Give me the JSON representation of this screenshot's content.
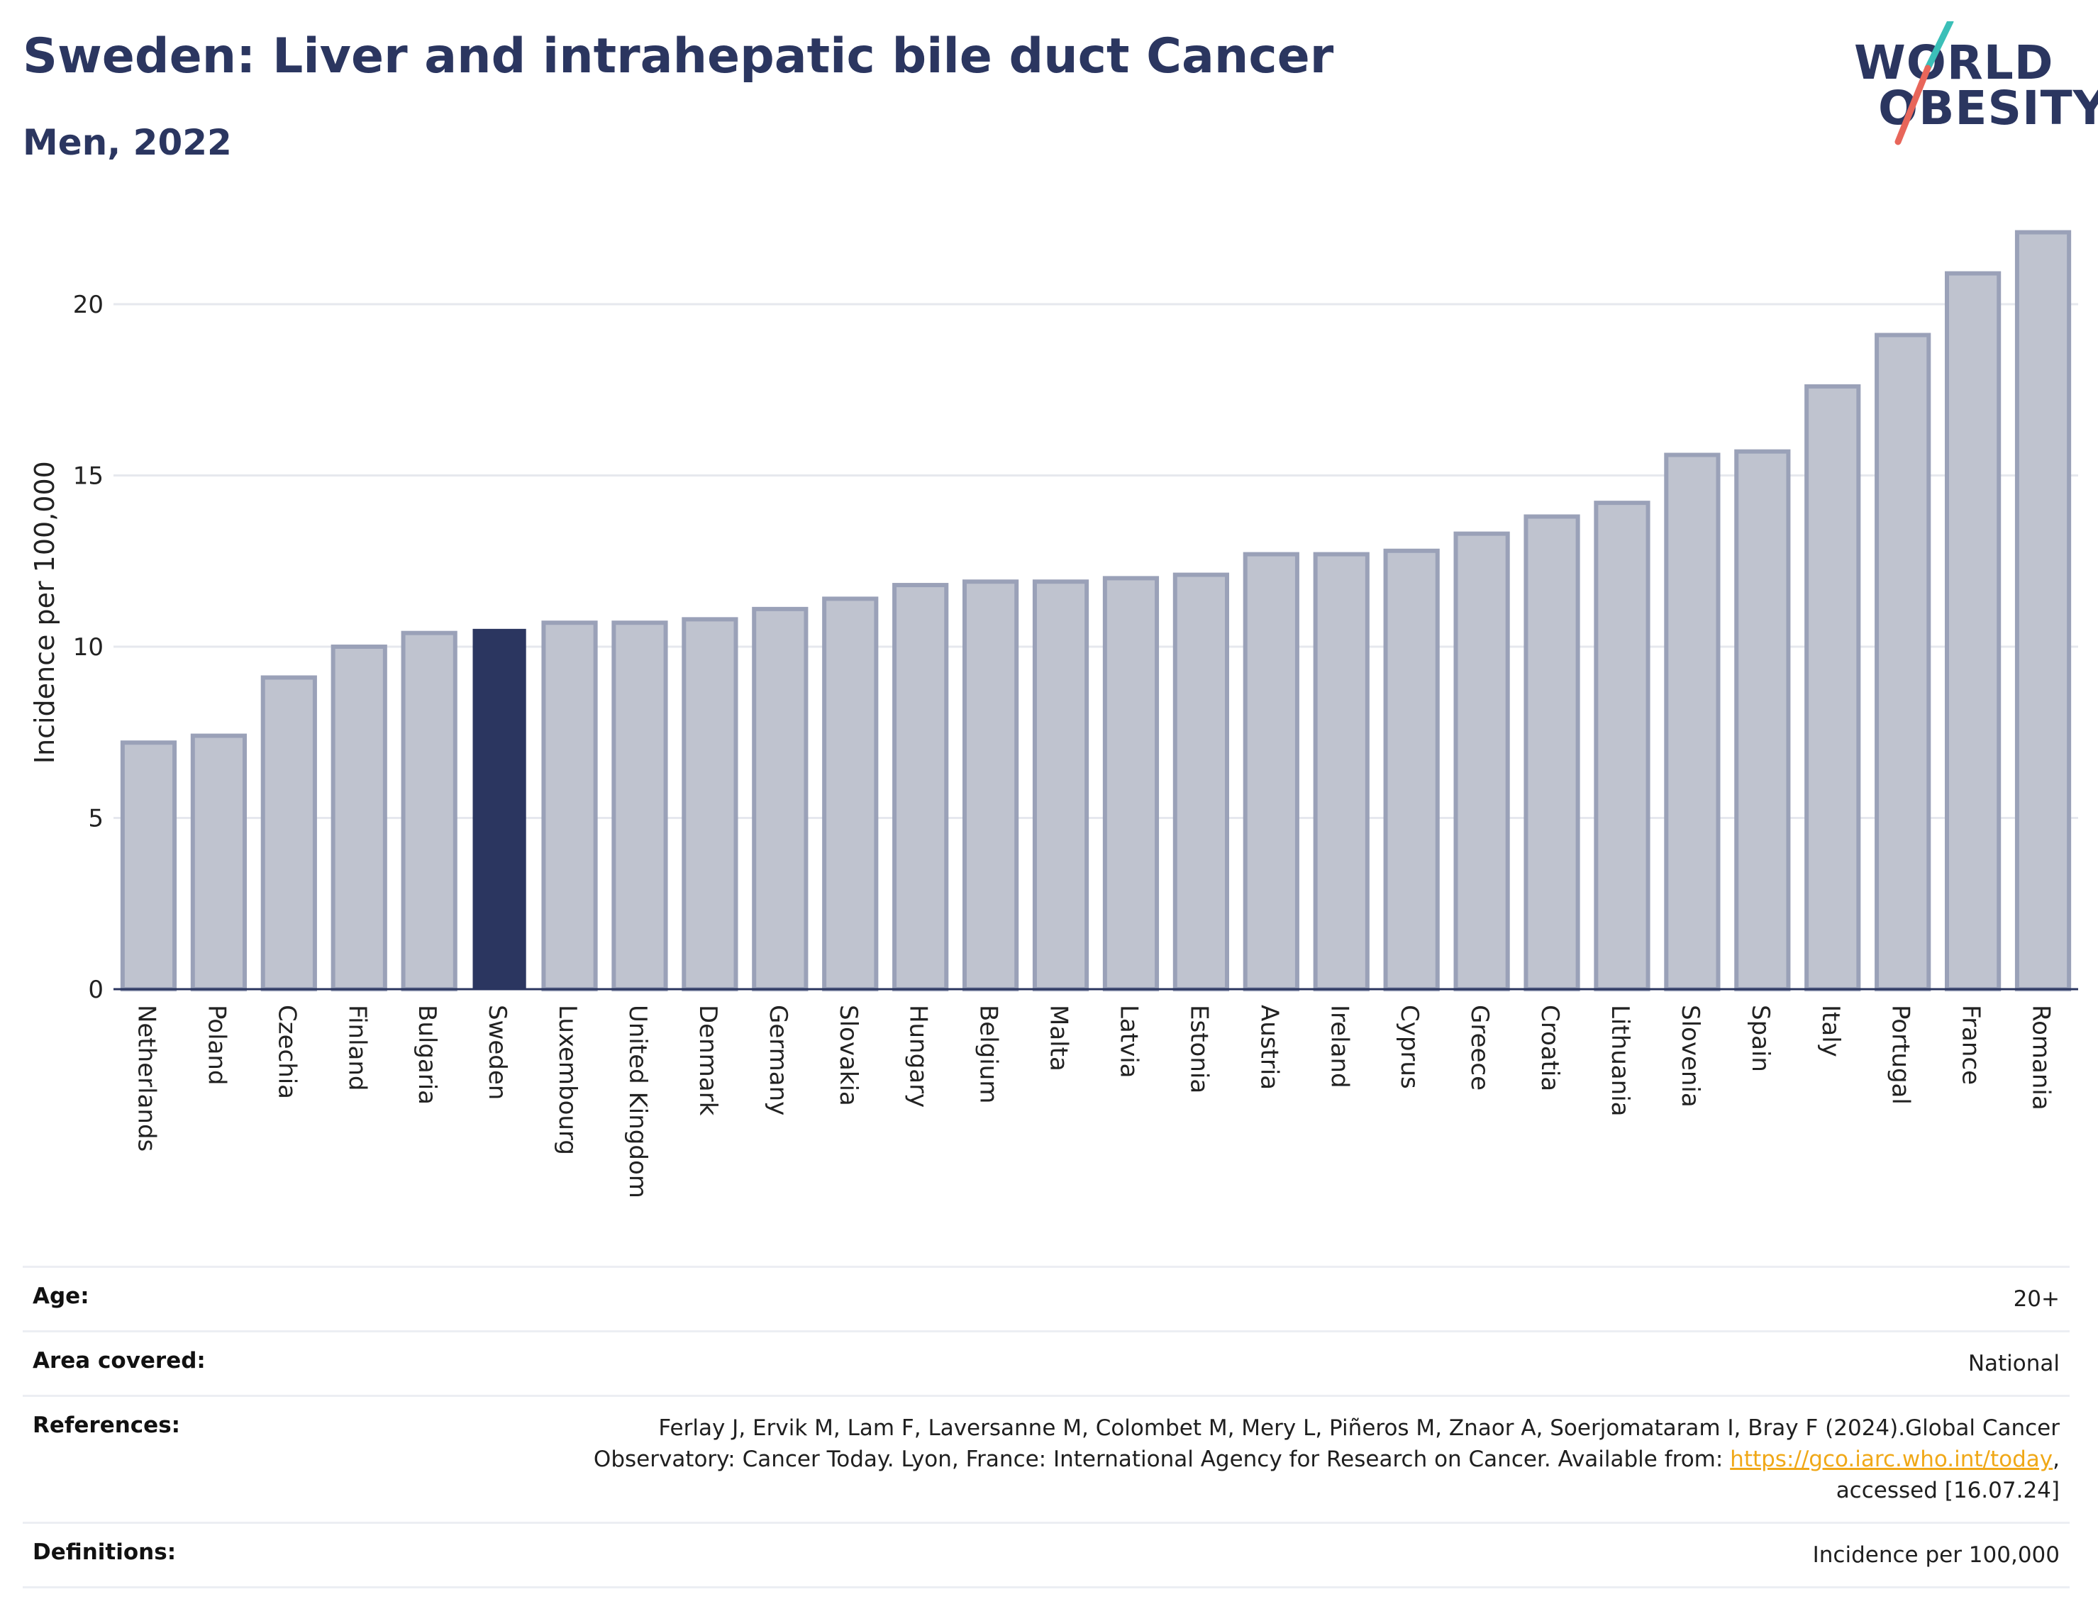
{
  "header": {
    "title": "Sweden: Liver and intrahepatic bile duct Cancer",
    "subtitle": "Men, 2022"
  },
  "logo": {
    "line1": "WORLD",
    "line2": "OBESITY",
    "colors": {
      "text": "#2b3660",
      "slash_top": "#3bbfb8",
      "slash_bottom": "#e8665a"
    }
  },
  "chart_data": {
    "type": "bar",
    "title": "",
    "xlabel": "",
    "ylabel": "Incidence per 100,000",
    "ylim": [
      0,
      22.5
    ],
    "yticks": [
      0,
      5,
      10,
      15,
      20
    ],
    "grid": true,
    "highlight": "Sweden",
    "colors": {
      "bar": "#bfc3cf",
      "bar_border": "#9aa1b8",
      "highlight": "#2b3660",
      "gridline": "#e6e8ee",
      "axis": "#2b3660"
    },
    "categories": [
      "Netherlands",
      "Poland",
      "Czechia",
      "Finland",
      "Bulgaria",
      "Sweden",
      "Luxembourg",
      "United Kingdom",
      "Denmark",
      "Germany",
      "Slovakia",
      "Hungary",
      "Belgium",
      "Malta",
      "Latvia",
      "Estonia",
      "Austria",
      "Ireland",
      "Cyprus",
      "Greece",
      "Croatia",
      "Lithuania",
      "Slovenia",
      "Spain",
      "Italy",
      "Portugal",
      "France",
      "Romania"
    ],
    "values": [
      7.2,
      7.4,
      9.1,
      10.0,
      10.4,
      10.5,
      10.7,
      10.7,
      10.8,
      11.1,
      11.4,
      11.8,
      11.9,
      11.9,
      12.0,
      12.1,
      12.7,
      12.7,
      12.8,
      13.3,
      13.8,
      14.2,
      15.6,
      15.7,
      17.6,
      19.1,
      20.9,
      22.1
    ]
  },
  "info": {
    "rows": [
      {
        "label": "Age:",
        "value": "20+"
      },
      {
        "label": "Area covered:",
        "value": "National"
      },
      {
        "label": "References:",
        "value_line1": "Ferlay J, Ervik M, Lam F, Laversanne M, Colombet M, Mery L, Piñeros M, Znaor A, Soerjomataram I, Bray F (2024).Global Cancer",
        "value_line2_pre": "Observatory: Cancer Today. Lyon, France: International Agency for Research on Cancer. Available from: ",
        "link": "https://gco.iarc.who.int/today",
        "value_line2_post": ",",
        "value_line3": "accessed [16.07.24]"
      },
      {
        "label": "Definitions:",
        "value": "Incidence per 100,000"
      }
    ]
  }
}
